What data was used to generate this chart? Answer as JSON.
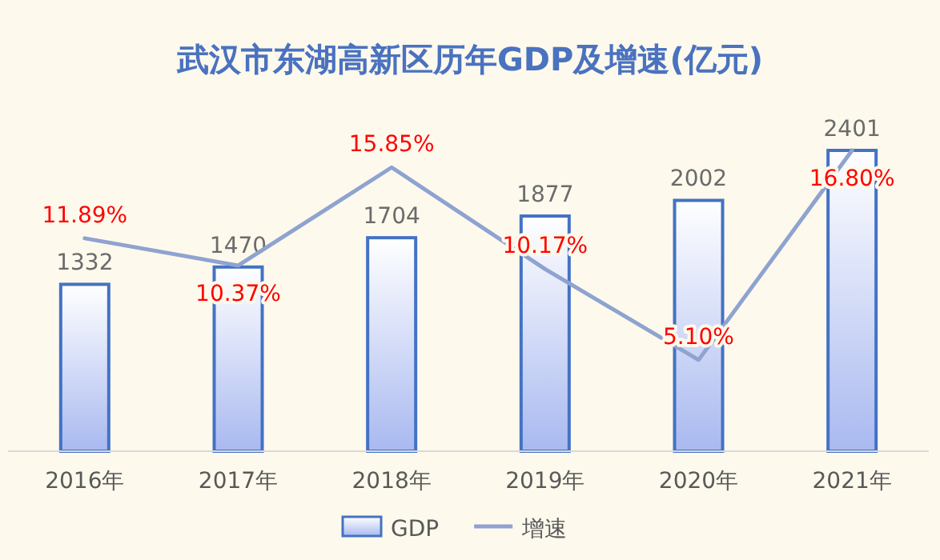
{
  "chart_data": {
    "type": "bar",
    "title": "武汉市东湖高新区历年GDP及增速(亿元)",
    "categories": [
      "2016年",
      "2017年",
      "2018年",
      "2019年",
      "2020年",
      "2021年"
    ],
    "series": [
      {
        "name": "GDP",
        "color": "#4472c4",
        "values": [
          1332,
          1470,
          1704,
          1877,
          2002,
          2401
        ]
      },
      {
        "name": "增速",
        "type": "line",
        "axis": "y2",
        "color": "#8fa3d0",
        "values": [
          11.89,
          10.37,
          15.85,
          10.17,
          5.1,
          16.8
        ],
        "value_labels": [
          "11.89%",
          "10.37%",
          "15.85%",
          "10.17%",
          "5.10%",
          "16.80%"
        ]
      }
    ],
    "data_labels": true,
    "legend": "bottom",
    "grid": false,
    "marker": "none",
    "line_style": "solid"
  }
}
